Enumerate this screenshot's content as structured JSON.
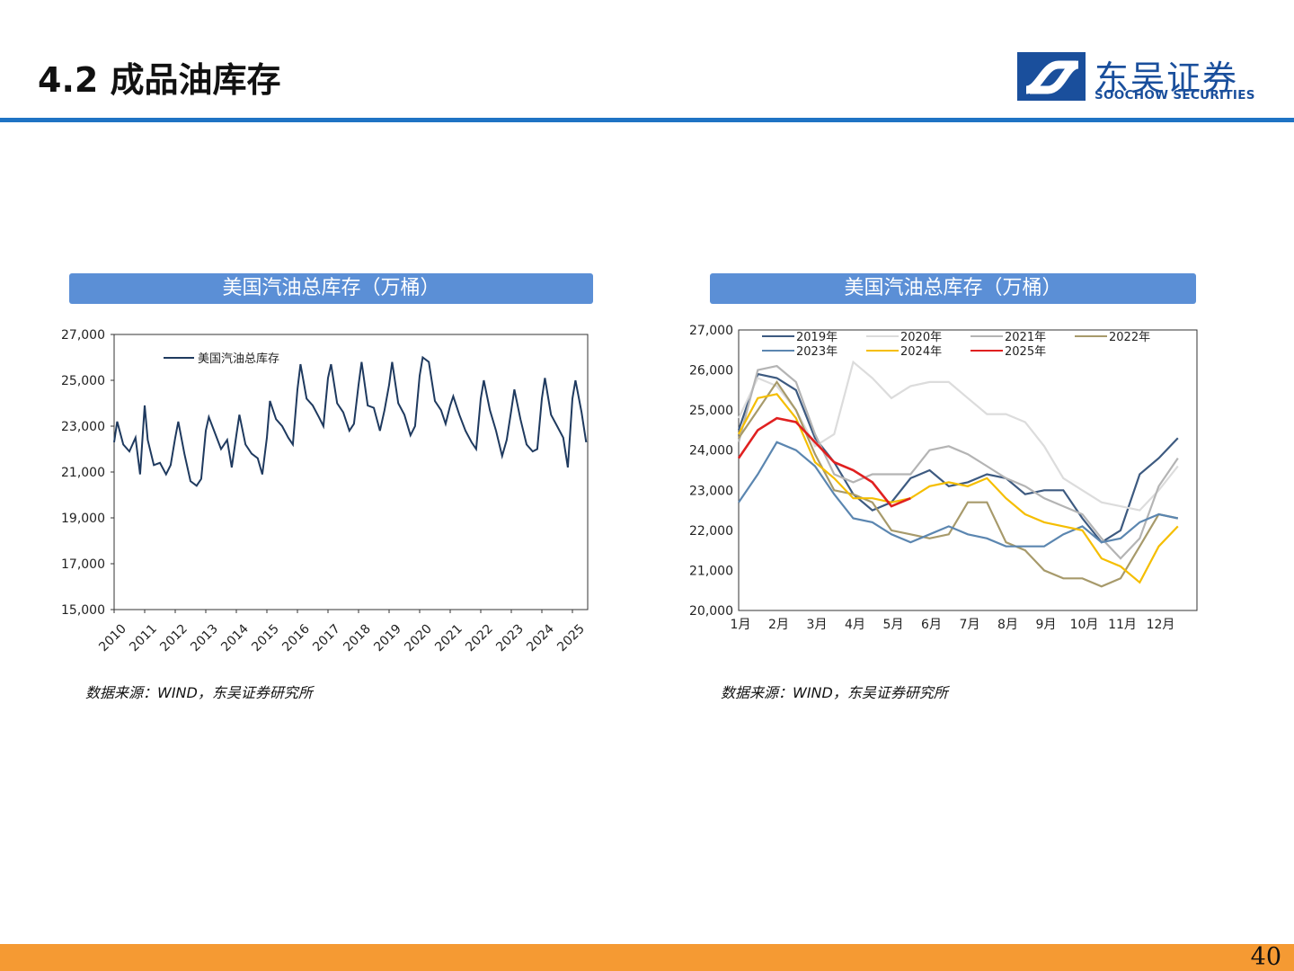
{
  "page": {
    "title": "4.2 成品油库存",
    "page_number": "40",
    "logo_cn": "东吴证券",
    "logo_en": "SOOCHOW SECURITIES",
    "colors": {
      "accent_blue": "#1f73c4",
      "bottom_bar": "#f59a33",
      "panel_header": "#5b8fd6"
    }
  },
  "chart_data": [
    {
      "type": "line",
      "header": "美国汽油总库存（万桶）",
      "source": "数据来源：WIND，东吴证券研究所",
      "ylim": [
        15000,
        27000
      ],
      "yticks": [
        "15,000",
        "17,000",
        "19,000",
        "21,000",
        "23,000",
        "25,000",
        "27,000"
      ],
      "xticks": [
        "2010",
        "2011",
        "2012",
        "2013",
        "2014",
        "2015",
        "2016",
        "2017",
        "2018",
        "2019",
        "2020",
        "2021",
        "2022",
        "2023",
        "2024",
        "2025"
      ],
      "series": [
        {
          "name": "美国汽油总库存",
          "color": "#1f3a5f",
          "x": [
            2010.0,
            2010.1,
            2010.3,
            2010.5,
            2010.7,
            2010.85,
            2011.0,
            2011.1,
            2011.3,
            2011.5,
            2011.7,
            2011.85,
            2012.0,
            2012.1,
            2012.3,
            2012.5,
            2012.7,
            2012.85,
            2013.0,
            2013.1,
            2013.3,
            2013.5,
            2013.7,
            2013.85,
            2014.0,
            2014.1,
            2014.3,
            2014.5,
            2014.7,
            2014.85,
            2015.0,
            2015.1,
            2015.3,
            2015.5,
            2015.7,
            2015.85,
            2016.0,
            2016.1,
            2016.3,
            2016.5,
            2016.7,
            2016.85,
            2017.0,
            2017.1,
            2017.3,
            2017.5,
            2017.7,
            2017.85,
            2018.0,
            2018.1,
            2018.3,
            2018.5,
            2018.7,
            2018.85,
            2019.0,
            2019.1,
            2019.3,
            2019.5,
            2019.7,
            2019.85,
            2020.0,
            2020.1,
            2020.3,
            2020.5,
            2020.7,
            2020.85,
            2021.0,
            2021.1,
            2021.3,
            2021.5,
            2021.7,
            2021.85,
            2022.0,
            2022.1,
            2022.3,
            2022.5,
            2022.7,
            2022.85,
            2023.0,
            2023.1,
            2023.3,
            2023.5,
            2023.7,
            2023.85,
            2024.0,
            2024.1,
            2024.3,
            2024.5,
            2024.7,
            2024.85,
            2025.0,
            2025.1,
            2025.3,
            2025.45
          ],
          "values": [
            22300,
            23200,
            22200,
            21900,
            22500,
            20900,
            23900,
            22400,
            21300,
            21400,
            20900,
            21300,
            22500,
            23200,
            21800,
            20600,
            20400,
            20700,
            22800,
            23400,
            22700,
            22000,
            22400,
            21200,
            22600,
            23500,
            22200,
            21800,
            21600,
            20900,
            22500,
            24100,
            23300,
            23000,
            22500,
            22200,
            24600,
            25700,
            24200,
            23900,
            23400,
            23000,
            25100,
            25700,
            24000,
            23600,
            22800,
            23100,
            24800,
            25800,
            23900,
            23800,
            22800,
            23700,
            24800,
            25800,
            24000,
            23500,
            22600,
            23000,
            25200,
            26000,
            25800,
            24100,
            23700,
            23100,
            23900,
            24300,
            23500,
            22800,
            22300,
            22000,
            24200,
            25000,
            23700,
            22800,
            21700,
            22400,
            23700,
            24600,
            23300,
            22200,
            21900,
            22000,
            24200,
            25100,
            23500,
            23000,
            22500,
            21200,
            24200,
            25000,
            23600,
            22300
          ]
        }
      ]
    },
    {
      "type": "line",
      "header": "美国汽油总库存（万桶）",
      "source": "数据来源：WIND，东吴证券研究所",
      "ylim": [
        20000,
        27000
      ],
      "yticks": [
        "20,000",
        "21,000",
        "22,000",
        "23,000",
        "24,000",
        "25,000",
        "26,000",
        "27,000"
      ],
      "xticks": [
        "1月",
        "2月",
        "3月",
        "4月",
        "5月",
        "6月",
        "7月",
        "8月",
        "9月",
        "10月",
        "11月",
        "12月"
      ],
      "legend_position": "top",
      "series": [
        {
          "name": "2019年",
          "color": "#3d5a80",
          "values": [
            24500,
            25900,
            25800,
            25500,
            24300,
            23700,
            22900,
            22500,
            22700,
            23300,
            23500,
            23100,
            23200,
            23400,
            23300,
            22900,
            23000,
            23000,
            22300,
            21700,
            22000,
            23400,
            23800,
            24300
          ]
        },
        {
          "name": "2020年",
          "color": "#dcdcdc",
          "values": [
            24800,
            25800,
            25600,
            25000,
            24100,
            24400,
            26200,
            25800,
            25300,
            25600,
            25700,
            25700,
            25300,
            24900,
            24900,
            24700,
            24100,
            23300,
            23000,
            22700,
            22600,
            22500,
            23000,
            23600
          ]
        },
        {
          "name": "2021年",
          "color": "#b4b4b4",
          "values": [
            24200,
            26000,
            26100,
            25700,
            24400,
            23400,
            23200,
            23400,
            23400,
            23400,
            24000,
            24100,
            23900,
            23600,
            23300,
            23100,
            22800,
            22600,
            22400,
            21800,
            21300,
            21800,
            23100,
            23800
          ]
        },
        {
          "name": "2022年",
          "color": "#a79a6b",
          "values": [
            24300,
            25000,
            25700,
            25000,
            23900,
            23000,
            22900,
            22700,
            22000,
            21900,
            21800,
            21900,
            22700,
            22700,
            21700,
            21500,
            21000,
            20800,
            20800,
            20600,
            20800,
            21600,
            22400,
            22300
          ]
        },
        {
          "name": "2023年",
          "color": "#5b86b0",
          "values": [
            22700,
            23400,
            24200,
            24000,
            23600,
            22900,
            22300,
            22200,
            21900,
            21700,
            21900,
            22100,
            21900,
            21800,
            21600,
            21600,
            21600,
            21900,
            22100,
            21700,
            21800,
            22200,
            22400,
            22300
          ]
        },
        {
          "name": "2024年",
          "color": "#f5be00",
          "values": [
            24400,
            25300,
            25400,
            24800,
            23700,
            23300,
            22800,
            22800,
            22700,
            22800,
            23100,
            23200,
            23100,
            23300,
            22800,
            22400,
            22200,
            22100,
            22000,
            21300,
            21100,
            20700,
            21600,
            22100
          ]
        },
        {
          "name": "2025年",
          "color": "#e02020",
          "values": [
            23800,
            24500,
            24800,
            24700,
            24200,
            23700,
            23500,
            23200,
            22600,
            22800
          ]
        }
      ]
    }
  ]
}
